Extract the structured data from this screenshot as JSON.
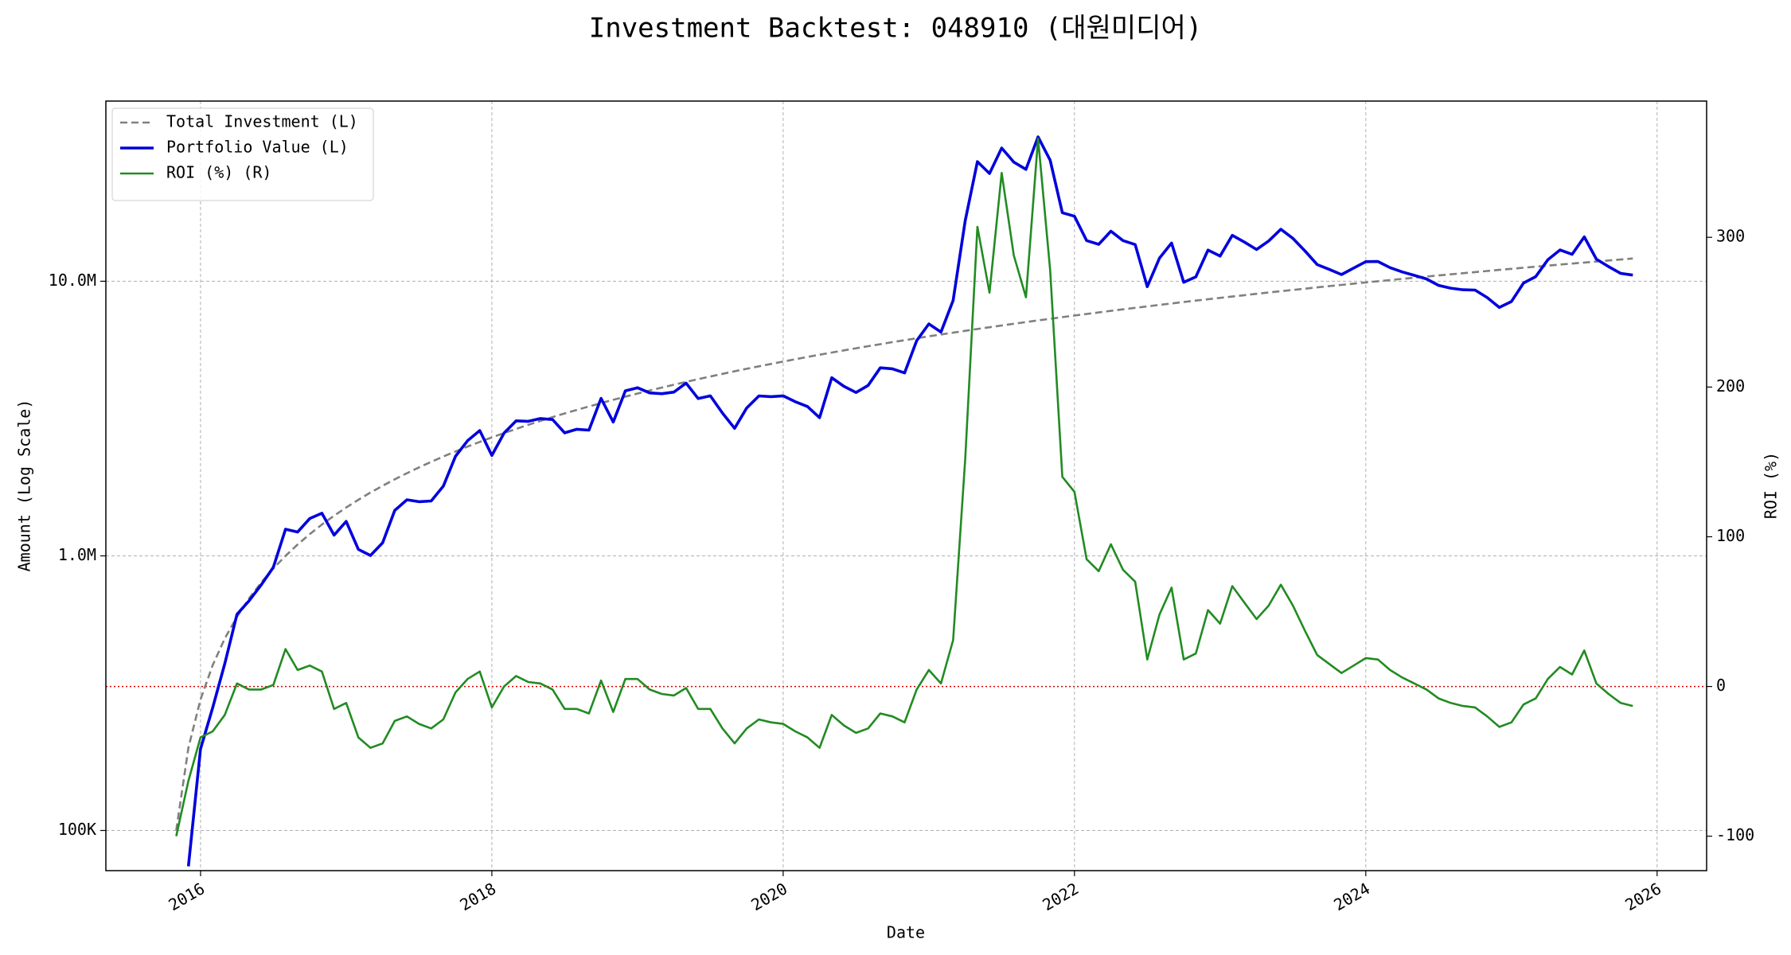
{
  "chart_data": {
    "type": "line",
    "title": "Investment Backtest: 048910 (대원미디어)",
    "xlabel": "Date",
    "ylabel": "Amount (Log Scale)",
    "y2label": "ROI (%)",
    "yscale": "log",
    "grid": true,
    "legend": "upper left",
    "xlim": [
      2015.35,
      2026.34
    ],
    "xticks": [
      2016,
      2018,
      2020,
      2022,
      2024,
      2026
    ],
    "ylim": [
      71400,
      45300000
    ],
    "yticks": [
      {
        "value": 100000,
        "label": "100K"
      },
      {
        "value": 1000000,
        "label": "1.0M"
      },
      {
        "value": 10000000,
        "label": "10.0M"
      }
    ],
    "y2lim": [
      -123,
      391
    ],
    "y2ticks": [
      -100,
      0,
      100,
      200,
      300
    ],
    "ycolor": "#0000cd",
    "y2color": "#228b22",
    "hline": {
      "value": 0,
      "axis": "y2",
      "color": "#dd0000"
    },
    "x": [
      "2015-11",
      "2015-12",
      "2016-01",
      "2016-02",
      "2016-03",
      "2016-04",
      "2016-05",
      "2016-06",
      "2016-07",
      "2016-08",
      "2016-09",
      "2016-10",
      "2016-11",
      "2016-12",
      "2017-01",
      "2017-02",
      "2017-03",
      "2017-04",
      "2017-05",
      "2017-06",
      "2017-07",
      "2017-08",
      "2017-09",
      "2017-10",
      "2017-11",
      "2017-12",
      "2018-01",
      "2018-02",
      "2018-03",
      "2018-04",
      "2018-05",
      "2018-06",
      "2018-07",
      "2018-08",
      "2018-09",
      "2018-10",
      "2018-11",
      "2018-12",
      "2019-01",
      "2019-02",
      "2019-03",
      "2019-04",
      "2019-05",
      "2019-06",
      "2019-07",
      "2019-08",
      "2019-09",
      "2019-10",
      "2019-11",
      "2019-12",
      "2020-01",
      "2020-02",
      "2020-03",
      "2020-04",
      "2020-05",
      "2020-06",
      "2020-07",
      "2020-08",
      "2020-09",
      "2020-10",
      "2020-11",
      "2020-12",
      "2021-01",
      "2021-02",
      "2021-03",
      "2021-04",
      "2021-05",
      "2021-06",
      "2021-07",
      "2021-08",
      "2021-09",
      "2021-10",
      "2021-11",
      "2021-12",
      "2022-01",
      "2022-02",
      "2022-03",
      "2022-04",
      "2022-05",
      "2022-06",
      "2022-07",
      "2022-08",
      "2022-09",
      "2022-10",
      "2022-11",
      "2022-12",
      "2023-01",
      "2023-02",
      "2023-03",
      "2023-04",
      "2023-05",
      "2023-06",
      "2023-07",
      "2023-08",
      "2023-09",
      "2023-10",
      "2023-11",
      "2023-12",
      "2024-01",
      "2024-02",
      "2024-03",
      "2024-04",
      "2024-05",
      "2024-06",
      "2024-07",
      "2024-08",
      "2024-09",
      "2024-10",
      "2024-11",
      "2024-12",
      "2025-01",
      "2025-02",
      "2025-03",
      "2025-04",
      "2025-05",
      "2025-06",
      "2025-07",
      "2025-08",
      "2025-09",
      "2025-10",
      "2025-11"
    ],
    "series": [
      {
        "name": "Total Investment (L)",
        "color": "#808080",
        "linestyle": "dashed",
        "axis": "y",
        "values": [
          100000,
          200000,
          300000,
          400000,
          500000,
          600000,
          700000,
          800000,
          900000,
          1000000,
          1100000,
          1200000,
          1300000,
          1400000,
          1500000,
          1600000,
          1700000,
          1800000,
          1900000,
          2000000,
          2100000,
          2200000,
          2300000,
          2400000,
          2500000,
          2600000,
          2700000,
          2800000,
          2900000,
          3000000,
          3100000,
          3200000,
          3300000,
          3400000,
          3500000,
          3600000,
          3700000,
          3800000,
          3900000,
          4000000,
          4100000,
          4200000,
          4300000,
          4400000,
          4500000,
          4600000,
          4700000,
          4800000,
          4900000,
          5000000,
          5100000,
          5200000,
          5300000,
          5400000,
          5500000,
          5600000,
          5700000,
          5800000,
          5900000,
          6000000,
          6100000,
          6200000,
          6300000,
          6400000,
          6500000,
          6600000,
          6700000,
          6800000,
          6900000,
          7000000,
          7100000,
          7200000,
          7300000,
          7400000,
          7500000,
          7600000,
          7700000,
          7800000,
          7900000,
          8000000,
          8100000,
          8200000,
          8300000,
          8400000,
          8500000,
          8600000,
          8700000,
          8800000,
          8900000,
          9000000,
          9100000,
          9200000,
          9300000,
          9400000,
          9500000,
          9600000,
          9700000,
          9800000,
          9900000,
          10000000,
          10100000,
          10200000,
          10300000,
          10400000,
          10500000,
          10600000,
          10700000,
          10800000,
          10900000,
          11000000,
          11100000,
          11200000,
          11300000,
          11400000,
          11500000,
          11600000,
          11700000,
          11800000,
          11900000,
          12000000,
          12100000
        ]
      },
      {
        "name": "Portfolio Value (L)",
        "color": "#0000dd",
        "linestyle": "solid",
        "axis": "y",
        "values": [
          null,
          74000,
          198000,
          280000,
          405000,
          612000,
          686000,
          784000,
          909000,
          1250000,
          1221000,
          1368000,
          1430000,
          1190000,
          1335000,
          1056000,
          1003000,
          1116000,
          1463000,
          1600000,
          1575000,
          1584000,
          1794000,
          2304000,
          2625000,
          2860000,
          2322000,
          2800000,
          3103000,
          3090000,
          3162000,
          3136000,
          2805000,
          2890000,
          2870000,
          3744000,
          3071000,
          3990000,
          4095000,
          3920000,
          3895000,
          3948000,
          4257000,
          3740000,
          3825000,
          3312000,
          2914000,
          3456000,
          3822000,
          3800000,
          3825000,
          3640000,
          3498000,
          3186000,
          4455000,
          4144000,
          3933000,
          4176000,
          4838000,
          4800000,
          4636000,
          6076000,
          6993000,
          6528000,
          8515000,
          16632000,
          27269000,
          24684000,
          30567000,
          27160000,
          25560000,
          33552000,
          27594000,
          17760000,
          17250000,
          14060000,
          13629000,
          15210000,
          14062000,
          13600000,
          9558000,
          12136000,
          13778000,
          9912000,
          10370000,
          12986000,
          12354000,
          14696000,
          13884000,
          13050000,
          14014000,
          15456000,
          14322000,
          12878000,
          11495000,
          11040000,
          10573000,
          11172000,
          11781000,
          11800000,
          11211000,
          10812000,
          10506000,
          10192000,
          9660000,
          9434000,
          9309000,
          9288000,
          8720000,
          8030000,
          8436000,
          9856000,
          10396000,
          11970000,
          12995000,
          12528000,
          14508000,
          12036000,
          11305000,
          10680000,
          10527000
        ]
      },
      {
        "name": "ROI (%) (R)",
        "color": "#228b22",
        "linestyle": "solid",
        "axis": "y2",
        "values": [
          -100,
          -63,
          -34,
          -30,
          -19,
          2,
          -2,
          -2,
          1,
          25,
          11,
          14,
          10,
          -15,
          -11,
          -34,
          -41,
          -38,
          -23,
          -20,
          -25,
          -28,
          -22,
          -4,
          5,
          10,
          -14,
          0,
          7,
          3,
          2,
          -2,
          -15,
          -15,
          -18,
          4,
          -17,
          5,
          5,
          -2,
          -5,
          -6,
          -1,
          -15,
          -15,
          -28,
          -38,
          -28,
          -22,
          -24,
          -25,
          -30,
          -34,
          -41,
          -19,
          -26,
          -31,
          -28,
          -18,
          -20,
          -24,
          -2,
          11,
          2,
          31,
          152,
          307,
          263,
          343,
          288,
          260,
          366,
          278,
          140,
          130,
          85,
          77,
          95,
          78,
          70,
          18,
          48,
          66,
          18,
          22,
          51,
          42,
          67,
          56,
          45,
          54,
          68,
          54,
          37,
          21,
          15,
          9,
          14,
          19,
          18,
          11,
          6,
          2,
          -2,
          -8,
          -11,
          -13,
          -14,
          -20,
          -27,
          -24,
          -12,
          -8,
          5,
          13,
          8,
          24,
          2,
          -5,
          -11,
          -13
        ]
      }
    ]
  }
}
